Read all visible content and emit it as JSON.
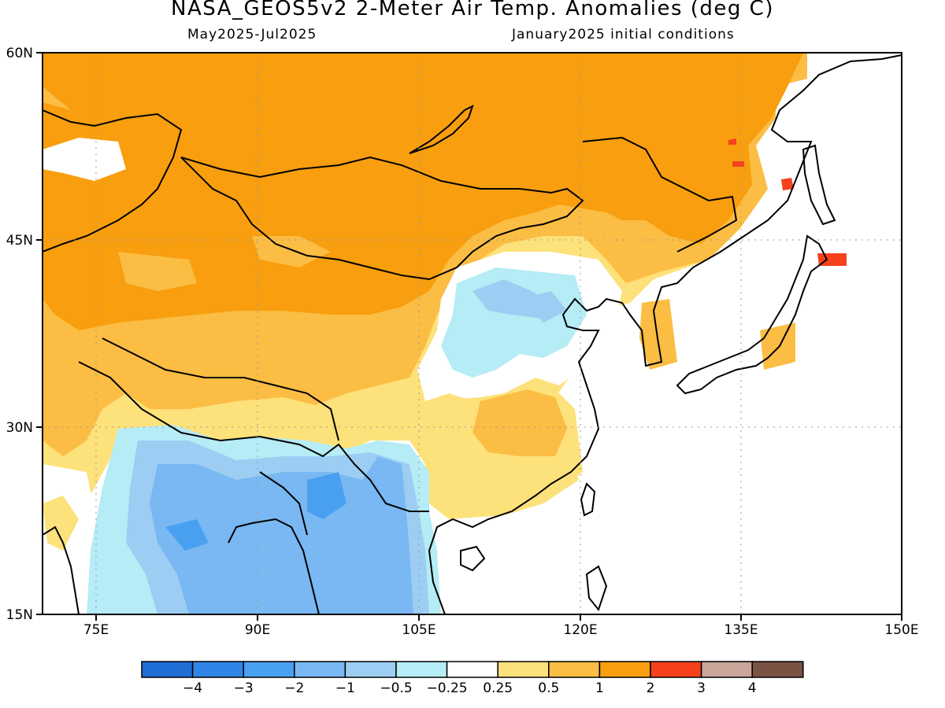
{
  "title": "NASA_GEOS5v2 2-Meter Air Temp. Anomalies (deg C)",
  "subtitle_left": "May2025-Jul2025",
  "subtitle_right": "January2025 initial conditions",
  "map": {
    "lon_range": [
      70,
      150
    ],
    "lat_range": [
      15,
      60
    ],
    "lon_ticks": [
      "75E",
      "90E",
      "105E",
      "120E",
      "135E",
      "150E"
    ],
    "lat_ticks": [
      "60N",
      "45N",
      "30N",
      "15N"
    ],
    "grid": "dotted",
    "coastlines": true
  },
  "colorbar": {
    "labels": [
      "-4",
      "-3",
      "-2",
      "-1",
      "-0.5",
      "-0.25",
      "0.25",
      "0.5",
      "1",
      "2",
      "3",
      "4"
    ],
    "colors": [
      "#1f6ed6",
      "#2f86e6",
      "#4aa0f0",
      "#79b8f2",
      "#9dcdf3",
      "#b5ecf5",
      "#ffffff",
      "#fde17a",
      "#fbbd43",
      "#f89e0f",
      "#f5411c",
      "#c9a59a",
      "#7a5345"
    ]
  },
  "anomaly_colors": {
    "strong_warm": "#f89e0f",
    "warm": "#fbbd43",
    "slight_warm": "#fde17a",
    "hot": "#f5411c",
    "neutral": "#ffffff",
    "slight_cool": "#b5ecf5",
    "cool": "#9dcdf3",
    "cooler": "#79b8f2",
    "cold": "#4aa0f0",
    "colder": "#2f86e6"
  }
}
